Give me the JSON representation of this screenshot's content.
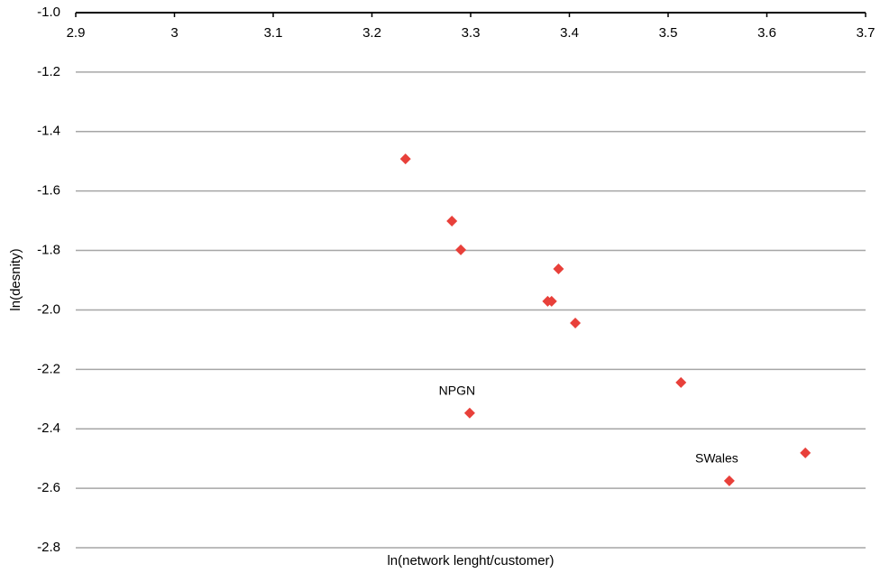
{
  "chart_data": {
    "type": "scatter",
    "x_label": "ln(network lenght/customer)",
    "y_label": "ln(desnity)",
    "x": [
      3.234,
      3.281,
      3.29,
      3.389,
      3.378,
      3.382,
      3.406,
      3.513,
      3.299,
      3.639,
      3.562
    ],
    "y": [
      -1.492,
      -1.701,
      -1.798,
      -1.862,
      -1.971,
      -1.971,
      -2.044,
      -2.244,
      -2.347,
      -2.481,
      -2.575
    ],
    "point_labels": [
      null,
      null,
      null,
      null,
      null,
      null,
      null,
      null,
      "NPGN",
      null,
      "SWales"
    ],
    "color": "#e8403a",
    "xlim": [
      2.9,
      3.7
    ],
    "xticks": [
      2.9,
      3,
      3.1,
      3.2,
      3.3,
      3.4,
      3.5,
      3.6,
      3.7
    ],
    "ylim": [
      -2.8,
      -1
    ],
    "yticks": [
      {
        "value": -1,
        "label": "-1.0"
      },
      -1.2,
      -1.4,
      -1.6,
      -1.8,
      {
        "value": -2,
        "label": "-2.0"
      },
      -2.2,
      -2.4,
      -2.6,
      -2.8
    ],
    "grid": true
  }
}
